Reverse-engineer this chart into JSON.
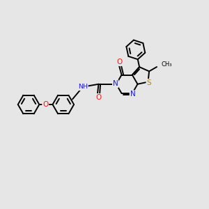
{
  "bg_color": "#e6e6e6",
  "bond_color": "#000000",
  "atom_colors": {
    "N": "#1414ff",
    "O": "#ff1414",
    "S": "#b8860b",
    "H": "#708090",
    "C": "#000000"
  },
  "bond_width": 1.4,
  "figsize": [
    3.0,
    3.0
  ],
  "dpi": 100
}
